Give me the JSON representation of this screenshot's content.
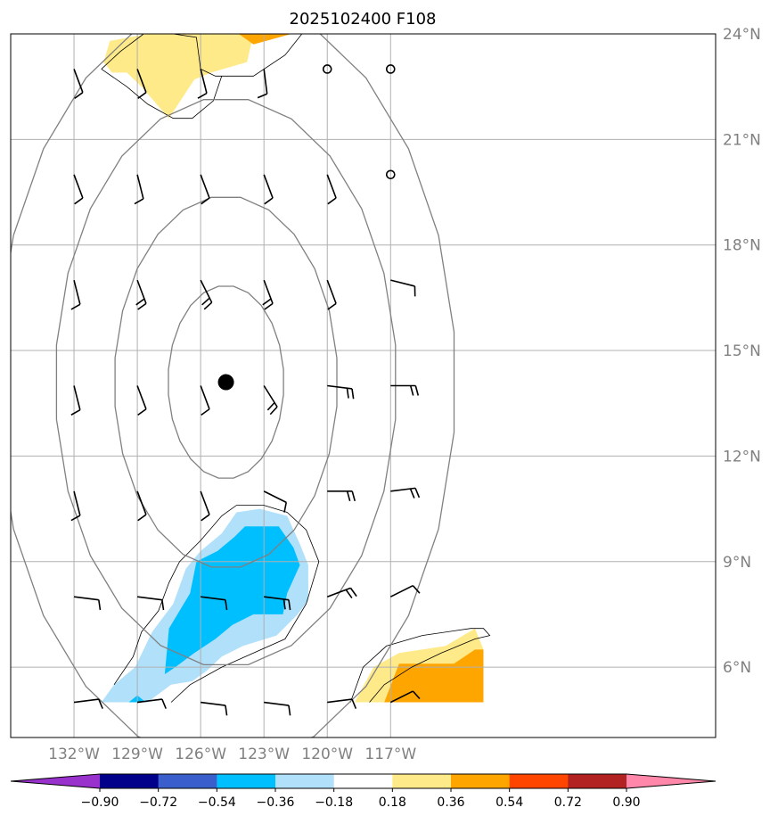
{
  "chart_data": {
    "type": "map_contour",
    "title": "2025102400 F108",
    "projection": "plate_carree",
    "lon_range": [
      -135,
      -101.6
    ],
    "lat_range": [
      4.0,
      24.0
    ],
    "lat_ticks": [
      {
        "value": 6,
        "label": "6°N"
      },
      {
        "value": 9,
        "label": "9°N"
      },
      {
        "value": 12,
        "label": "12°N"
      },
      {
        "value": 15,
        "label": "15°N"
      },
      {
        "value": 18,
        "label": "18°N"
      },
      {
        "value": 21,
        "label": "21°N"
      },
      {
        "value": 24,
        "label": "24°N"
      }
    ],
    "lon_ticks": [
      {
        "value": -132,
        "label": "132°W"
      },
      {
        "value": -129,
        "label": "129°W"
      },
      {
        "value": -126,
        "label": "126°W"
      },
      {
        "value": -123,
        "label": "123°W"
      },
      {
        "value": -120,
        "label": "120°W"
      },
      {
        "value": -117,
        "label": "117°W"
      }
    ],
    "grid": true,
    "storm_center": {
      "lon": -124.8,
      "lat": 14.1
    },
    "range_ring_radii_deg": [
      2.75,
      5.3,
      8.1,
      10.9
    ],
    "colorbar": {
      "levels": [
        -0.9,
        -0.72,
        -0.54,
        -0.36,
        -0.18,
        0.18,
        0.36,
        0.54,
        0.72,
        0.9
      ],
      "labels": [
        "−0.90",
        "−0.72",
        "−0.54",
        "−0.36",
        "−0.18",
        "0.18",
        "0.36",
        "0.54",
        "0.72",
        "0.90"
      ],
      "colors": [
        "#9932cc",
        "#00008b",
        "#3a5fcd",
        "#00bfff",
        "#b0e0fa",
        "#ffffff",
        "#ffea8a",
        "#ffa500",
        "#ff4500",
        "#b22222",
        "#ff88aa"
      ],
      "extend": "both"
    },
    "filled_regions": [
      {
        "name": "north-light-yellow",
        "color": "#ffea8a",
        "points": [
          [
            -130.3,
            23.8
          ],
          [
            -128.5,
            24.0
          ],
          [
            -123.5,
            24.0
          ],
          [
            -123.8,
            23.2
          ],
          [
            -125.5,
            22.9
          ],
          [
            -126.3,
            22.7
          ],
          [
            -127.5,
            21.6
          ],
          [
            -128.8,
            22.5
          ],
          [
            -129.5,
            22.9
          ],
          [
            -130.2,
            22.9
          ],
          [
            -130.6,
            23.2
          ]
        ]
      },
      {
        "name": "north-orange",
        "color": "#ffa500",
        "points": [
          [
            -124.2,
            24.0
          ],
          [
            -121.7,
            24.0
          ],
          [
            -122.9,
            23.8
          ],
          [
            -123.5,
            23.7
          ]
        ]
      },
      {
        "name": "south-light-blue",
        "color": "#b0e0fa",
        "points": [
          [
            -130.7,
            5.0
          ],
          [
            -130.1,
            5.5
          ],
          [
            -129.1,
            6.0
          ],
          [
            -128.3,
            7.0
          ],
          [
            -127.3,
            7.8
          ],
          [
            -126.7,
            8.8
          ],
          [
            -126.0,
            9.3
          ],
          [
            -125.0,
            9.8
          ],
          [
            -124.3,
            10.4
          ],
          [
            -123.2,
            10.5
          ],
          [
            -121.9,
            10.3
          ],
          [
            -121.3,
            9.5
          ],
          [
            -120.9,
            8.9
          ],
          [
            -120.9,
            7.9
          ],
          [
            -121.4,
            7.5
          ],
          [
            -122.4,
            6.9
          ],
          [
            -124.0,
            6.6
          ],
          [
            -125.0,
            6.3
          ],
          [
            -125.7,
            5.9
          ],
          [
            -126.4,
            5.6
          ],
          [
            -127.4,
            5.5
          ],
          [
            -128.3,
            5.1
          ],
          [
            -128.5,
            5.0
          ]
        ]
      },
      {
        "name": "south-deep-sky-blue",
        "color": "#00bfff",
        "points": [
          [
            -127.7,
            5.8
          ],
          [
            -127.5,
            7.1
          ],
          [
            -126.5,
            8.1
          ],
          [
            -126.2,
            9.0
          ],
          [
            -125.2,
            9.3
          ],
          [
            -124.4,
            9.7
          ],
          [
            -123.9,
            10.0
          ],
          [
            -122.3,
            10.0
          ],
          [
            -121.6,
            9.4
          ],
          [
            -121.3,
            8.9
          ],
          [
            -121.9,
            8.1
          ],
          [
            -122.1,
            7.5
          ],
          [
            -123.5,
            7.5
          ],
          [
            -124.5,
            7.2
          ],
          [
            -125.3,
            6.8
          ],
          [
            -126.3,
            6.4
          ],
          [
            -127.2,
            6.0
          ]
        ]
      },
      {
        "name": "south-tiny-blue",
        "color": "#00bfff",
        "points": [
          [
            -129.4,
            5.0
          ],
          [
            -128.6,
            5.0
          ],
          [
            -129.0,
            5.2
          ]
        ]
      },
      {
        "name": "southeast-light-yellow",
        "color": "#ffea8a",
        "points": [
          [
            -118.7,
            5.0
          ],
          [
            -117.8,
            6.0
          ],
          [
            -116.6,
            6.4
          ],
          [
            -114.4,
            6.6
          ],
          [
            -113.0,
            7.1
          ],
          [
            -112.6,
            6.5
          ],
          [
            -112.6,
            5.0
          ]
        ]
      },
      {
        "name": "southeast-orange",
        "color": "#ffa500",
        "points": [
          [
            -117.3,
            5.0
          ],
          [
            -116.6,
            6.1
          ],
          [
            -114.0,
            6.1
          ],
          [
            -113.0,
            6.5
          ],
          [
            -112.6,
            6.5
          ],
          [
            -112.6,
            5.0
          ]
        ]
      }
    ],
    "outline_contours": [
      {
        "name": "north-outline",
        "points": [
          [
            -130.7,
            23.0
          ],
          [
            -129.8,
            23.5
          ],
          [
            -128.7,
            24.0
          ],
          [
            -127.3,
            24.0
          ],
          [
            -126.2,
            23.9
          ],
          [
            -126.0,
            23.0
          ],
          [
            -125.3,
            22.8
          ],
          [
            -123.5,
            22.8
          ],
          [
            -122.0,
            23.4
          ],
          [
            -121.2,
            24.0
          ]
        ]
      },
      {
        "name": "north-outline-2",
        "points": [
          [
            -130.7,
            23.0
          ],
          [
            -129.5,
            22.5
          ],
          [
            -128.5,
            22.0
          ],
          [
            -127.3,
            21.6
          ],
          [
            -126.4,
            21.6
          ],
          [
            -125.4,
            22.1
          ],
          [
            -125.0,
            22.8
          ]
        ]
      },
      {
        "name": "south-outline",
        "points": [
          [
            -130.1,
            5.5
          ],
          [
            -129.2,
            6.3
          ],
          [
            -128.8,
            7.0
          ],
          [
            -128.0,
            7.6
          ],
          [
            -127.5,
            8.4
          ],
          [
            -127.0,
            9.0
          ],
          [
            -126.0,
            9.6
          ],
          [
            -125.0,
            10.3
          ],
          [
            -124.3,
            10.6
          ],
          [
            -123.0,
            10.6
          ],
          [
            -121.9,
            10.4
          ],
          [
            -121.0,
            9.9
          ],
          [
            -120.4,
            9.0
          ],
          [
            -121.0,
            7.8
          ],
          [
            -122.0,
            6.8
          ],
          [
            -123.5,
            6.4
          ],
          [
            -125.0,
            6.0
          ],
          [
            -126.5,
            5.5
          ],
          [
            -127.4,
            5.0
          ]
        ]
      },
      {
        "name": "southeast-outline",
        "points": [
          [
            -118.9,
            5.0
          ],
          [
            -118.3,
            6.0
          ],
          [
            -117.2,
            6.6
          ],
          [
            -115.5,
            6.9
          ],
          [
            -113.2,
            7.1
          ],
          [
            -112.6,
            7.1
          ],
          [
            -112.3,
            6.9
          ],
          [
            -113.0,
            6.8
          ],
          [
            -114.6,
            6.4
          ],
          [
            -116.0,
            6.0
          ],
          [
            -117.3,
            5.5
          ],
          [
            -118.0,
            5.0
          ]
        ]
      }
    ],
    "wind_barbs": [
      {
        "lon": -132,
        "lat": 23,
        "u": -3,
        "v": 8,
        "flags": 1
      },
      {
        "lon": -129,
        "lat": 23,
        "u": -3,
        "v": 8,
        "flags": 1
      },
      {
        "lon": -126,
        "lat": 23,
        "u": -2,
        "v": 8,
        "flags": 1
      },
      {
        "lon": -123,
        "lat": 23,
        "u": -1,
        "v": 8,
        "flags": 1
      },
      {
        "lon": -120,
        "lat": 23,
        "calm": true
      },
      {
        "lon": -117,
        "lat": 23,
        "calm": true
      },
      {
        "lon": -132,
        "lat": 20,
        "u": -3,
        "v": 8,
        "flags": 1
      },
      {
        "lon": -129,
        "lat": 20,
        "u": -2,
        "v": 8,
        "flags": 1
      },
      {
        "lon": -126,
        "lat": 20,
        "u": -3,
        "v": 8,
        "flags": 1
      },
      {
        "lon": -123,
        "lat": 20,
        "u": -3,
        "v": 8,
        "flags": 1
      },
      {
        "lon": -120,
        "lat": 20,
        "u": -3,
        "v": 8,
        "flags": 1
      },
      {
        "lon": -117,
        "lat": 20,
        "calm": true
      },
      {
        "lon": -132,
        "lat": 17,
        "u": -2,
        "v": 8,
        "flags": 1
      },
      {
        "lon": -129,
        "lat": 17,
        "u": -3,
        "v": 8,
        "flags": 2
      },
      {
        "lon": -126,
        "lat": 17,
        "u": -4,
        "v": 8,
        "flags": 2
      },
      {
        "lon": -123,
        "lat": 17,
        "u": -3,
        "v": 8,
        "flags": 2
      },
      {
        "lon": -120,
        "lat": 17,
        "u": -3,
        "v": 8,
        "flags": 1
      },
      {
        "lon": -117,
        "lat": 17,
        "u": -8,
        "v": 2,
        "flags": 1
      },
      {
        "lon": -132,
        "lat": 14,
        "u": -2,
        "v": 8,
        "flags": 1
      },
      {
        "lon": -129,
        "lat": 14,
        "u": -3,
        "v": 8,
        "flags": 1
      },
      {
        "lon": -126,
        "lat": 14,
        "u": -3,
        "v": 8,
        "flags": 1
      },
      {
        "lon": -123,
        "lat": 14,
        "u": -5,
        "v": 8,
        "flags": 2
      },
      {
        "lon": -120,
        "lat": 14,
        "u": -8,
        "v": 1,
        "flags": 2
      },
      {
        "lon": -117,
        "lat": 14,
        "u": -8,
        "v": 0,
        "flags": 2
      },
      {
        "lon": -132,
        "lat": 11,
        "u": -2,
        "v": 8,
        "flags": 1
      },
      {
        "lon": -129,
        "lat": 11,
        "u": -3,
        "v": 8,
        "flags": 1
      },
      {
        "lon": -126,
        "lat": 11,
        "u": -3,
        "v": 8,
        "flags": 1
      },
      {
        "lon": -123,
        "lat": 11,
        "u": -8,
        "v": 4,
        "flags": 1
      },
      {
        "lon": -120,
        "lat": 11,
        "u": -8,
        "v": 0,
        "flags": 2
      },
      {
        "lon": -117,
        "lat": 11,
        "u": -8,
        "v": -1,
        "flags": 2
      },
      {
        "lon": -132,
        "lat": 8,
        "u": -8,
        "v": 1,
        "flags": 1
      },
      {
        "lon": -129,
        "lat": 8,
        "u": -8,
        "v": 1,
        "flags": 1
      },
      {
        "lon": -126,
        "lat": 8,
        "u": -8,
        "v": 1,
        "flags": 1
      },
      {
        "lon": -123,
        "lat": 8,
        "u": -8,
        "v": 1,
        "flags": 2
      },
      {
        "lon": -120,
        "lat": 8,
        "u": -8,
        "v": -3,
        "flags": 2
      },
      {
        "lon": -117,
        "lat": 8,
        "u": -8,
        "v": -4,
        "flags": 1
      },
      {
        "lon": -132,
        "lat": 5,
        "u": -8,
        "v": -1,
        "flags": 1
      },
      {
        "lon": -129,
        "lat": 5,
        "u": -8,
        "v": -1,
        "flags": 1
      },
      {
        "lon": -126,
        "lat": 5,
        "u": -8,
        "v": 1,
        "flags": 1
      },
      {
        "lon": -123,
        "lat": 5,
        "u": -8,
        "v": 1,
        "flags": 1
      },
      {
        "lon": -120,
        "lat": 5,
        "u": -8,
        "v": -1,
        "flags": 1
      },
      {
        "lon": -117,
        "lat": 5,
        "u": -8,
        "v": -4,
        "flags": 1
      }
    ]
  }
}
